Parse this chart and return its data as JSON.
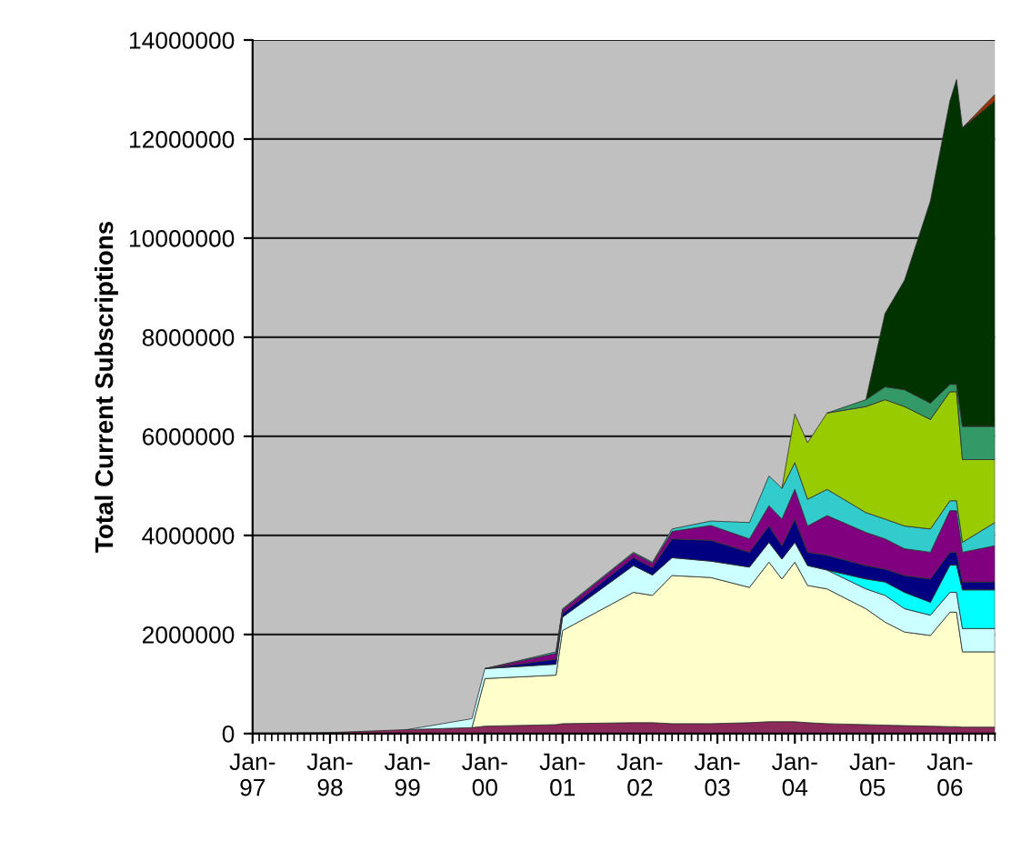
{
  "chart_data": {
    "type": "area",
    "stacked": true,
    "ylabel": "Total Current Subscriptions",
    "grid": "y",
    "legend": false,
    "x": [
      "1997-01",
      "1998-01",
      "1999-01",
      "1999-11",
      "2000-01",
      "2000-12",
      "2001-01",
      "2001-12",
      "2002-03",
      "2002-06",
      "2002-12",
      "2003-06",
      "2003-09",
      "2003-11",
      "2004-01",
      "2004-03",
      "2004-06",
      "2004-12",
      "2005-03",
      "2005-06",
      "2005-10",
      "2006-01",
      "2006-02",
      "2006-03",
      "2006-08"
    ],
    "series": [
      {
        "color": "#8b2a5a",
        "values": [
          0,
          20000,
          80000,
          120000,
          150000,
          180000,
          200000,
          220000,
          220000,
          200000,
          200000,
          220000,
          240000,
          240000,
          240000,
          220000,
          200000,
          180000,
          170000,
          160000,
          150000,
          140000,
          140000,
          130000,
          130000
        ]
      },
      {
        "color": "#ffffcc",
        "values": [
          null,
          null,
          null,
          0,
          960000,
          1000000,
          1880000,
          2630000,
          2570000,
          2990000,
          2950000,
          2730000,
          3220000,
          2880000,
          3220000,
          2770000,
          2720000,
          2340000,
          2080000,
          1890000,
          1830000,
          2310000,
          2310000,
          1520000,
          1520000
        ]
      },
      {
        "color": "#ccffff",
        "values": [
          null,
          null,
          0,
          180000,
          200000,
          220000,
          270000,
          540000,
          410000,
          360000,
          330000,
          410000,
          400000,
          400000,
          400000,
          400000,
          380000,
          400000,
          540000,
          470000,
          410000,
          400000,
          400000,
          470000,
          470000
        ]
      },
      {
        "color": "#00ffff",
        "values": [
          null,
          null,
          null,
          null,
          null,
          null,
          null,
          null,
          null,
          null,
          null,
          null,
          null,
          null,
          null,
          null,
          0,
          200000,
          270000,
          330000,
          260000,
          550000,
          550000,
          780000,
          780000
        ]
      },
      {
        "color": "#000080",
        "values": [
          null,
          null,
          null,
          null,
          0,
          100000,
          70000,
          160000,
          150000,
          380000,
          420000,
          300000,
          330000,
          270000,
          470000,
          270000,
          300000,
          270000,
          260000,
          340000,
          470000,
          260000,
          260000,
          160000,
          160000
        ]
      },
      {
        "color": "#800080",
        "values": [
          null,
          null,
          null,
          null,
          0,
          120000,
          80000,
          90000,
          90000,
          150000,
          300000,
          270000,
          410000,
          540000,
          600000,
          530000,
          800000,
          670000,
          610000,
          540000,
          540000,
          840000,
          840000,
          600000,
          730000
        ]
      },
      {
        "color": "#33cccc",
        "values": [
          null,
          null,
          null,
          null,
          0,
          30000,
          20000,
          20000,
          20000,
          50000,
          90000,
          330000,
          600000,
          620000,
          540000,
          540000,
          530000,
          400000,
          400000,
          460000,
          470000,
          200000,
          200000,
          200000,
          470000
        ]
      },
      {
        "color": "#99cc00",
        "values": [
          null,
          null,
          null,
          null,
          null,
          null,
          null,
          null,
          null,
          null,
          null,
          null,
          null,
          0,
          980000,
          1140000,
          1540000,
          2140000,
          2410000,
          2410000,
          2210000,
          2200000,
          2200000,
          1670000,
          1270000
        ]
      },
      {
        "color": "#339966",
        "values": [
          null,
          null,
          null,
          null,
          null,
          null,
          null,
          null,
          null,
          null,
          null,
          null,
          null,
          null,
          null,
          null,
          0,
          140000,
          260000,
          340000,
          330000,
          150000,
          150000,
          670000,
          670000
        ]
      },
      {
        "color": "#003300",
        "values": [
          null,
          null,
          null,
          null,
          null,
          null,
          null,
          null,
          null,
          null,
          null,
          null,
          null,
          null,
          null,
          null,
          null,
          0,
          1480000,
          2210000,
          4080000,
          5720000,
          6150000,
          6030000,
          6570000
        ]
      },
      {
        "color": "#993300",
        "values": [
          null,
          null,
          null,
          null,
          null,
          null,
          null,
          null,
          null,
          null,
          null,
          null,
          null,
          null,
          null,
          null,
          null,
          null,
          null,
          null,
          null,
          null,
          null,
          0,
          130000
        ]
      }
    ],
    "xlim": [
      "1997-01",
      "2006-08"
    ],
    "xticks": [
      {
        "value": "1997-01",
        "label": "Jan-97"
      },
      {
        "value": "1998-01",
        "label": "Jan-98"
      },
      {
        "value": "1999-01",
        "label": "Jan-99"
      },
      {
        "value": "2000-01",
        "label": "Jan-00"
      },
      {
        "value": "2001-01",
        "label": "Jan-01"
      },
      {
        "value": "2002-01",
        "label": "Jan-02"
      },
      {
        "value": "2003-01",
        "label": "Jan-03"
      },
      {
        "value": "2004-01",
        "label": "Jan-04"
      },
      {
        "value": "2005-01",
        "label": "Jan-05"
      },
      {
        "value": "2006-01",
        "label": "Jan-06"
      }
    ],
    "ylim": [
      0,
      14000000
    ],
    "yticks": [
      0,
      2000000,
      4000000,
      6000000,
      8000000,
      10000000,
      12000000,
      14000000
    ]
  }
}
